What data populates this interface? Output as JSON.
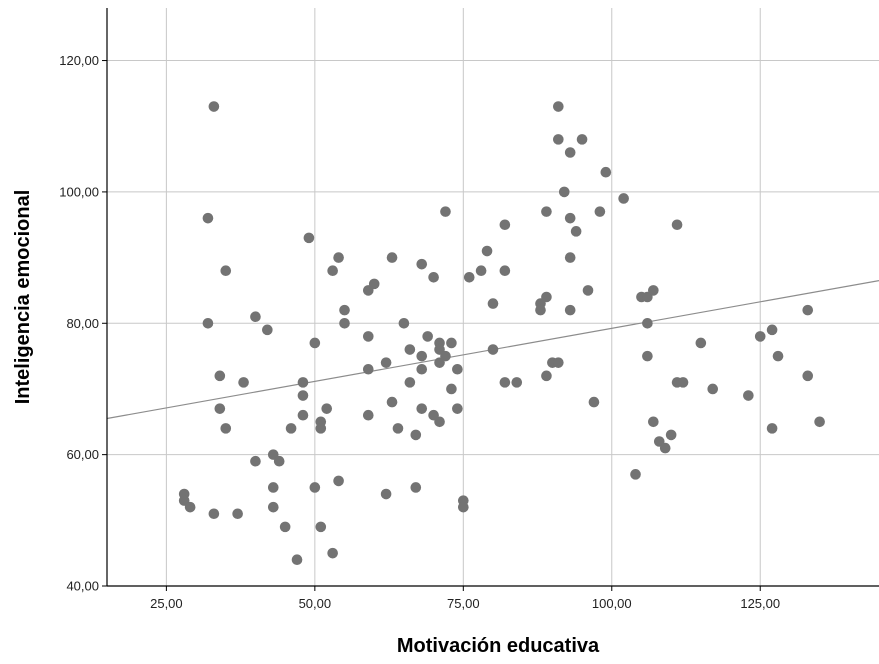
{
  "chart_data": {
    "type": "scatter",
    "title": "",
    "xlabel": "Motivación educativa",
    "ylabel": "Inteligencia emocional",
    "xlim": [
      15,
      145
    ],
    "ylim": [
      40,
      128
    ],
    "xticks": [
      25,
      50,
      75,
      100,
      125
    ],
    "yticks": [
      40,
      60,
      80,
      100,
      120
    ],
    "xtick_labels": [
      "25,00",
      "50,00",
      "75,00",
      "100,00",
      "125,00"
    ],
    "ytick_labels": [
      "40,00",
      "60,00",
      "80,00",
      "100,00",
      "120,00"
    ],
    "grid": true,
    "legend": "none",
    "colors": {
      "points": "#737373",
      "fit_line": "#8c8c8c",
      "grid": "#c8c8c8",
      "axis": "#000000"
    },
    "fit_line": {
      "x": [
        15,
        145
      ],
      "y": [
        65.5,
        86.5
      ]
    },
    "points": [
      [
        28,
        54
      ],
      [
        28,
        53
      ],
      [
        29,
        52
      ],
      [
        32,
        96
      ],
      [
        32,
        80
      ],
      [
        33,
        113
      ],
      [
        33,
        51
      ],
      [
        34,
        72
      ],
      [
        34,
        67
      ],
      [
        35,
        88
      ],
      [
        35,
        64
      ],
      [
        37,
        51
      ],
      [
        38,
        71
      ],
      [
        40,
        81
      ],
      [
        40,
        59
      ],
      [
        42,
        79
      ],
      [
        43,
        60
      ],
      [
        43,
        55
      ],
      [
        43,
        52
      ],
      [
        44,
        59
      ],
      [
        45,
        49
      ],
      [
        46,
        64
      ],
      [
        47,
        44
      ],
      [
        48,
        71
      ],
      [
        48,
        69
      ],
      [
        48,
        66
      ],
      [
        49,
        93
      ],
      [
        50,
        77
      ],
      [
        50,
        55
      ],
      [
        51,
        65
      ],
      [
        51,
        64
      ],
      [
        51,
        49
      ],
      [
        52,
        67
      ],
      [
        53,
        88
      ],
      [
        53,
        45
      ],
      [
        54,
        90
      ],
      [
        54,
        56
      ],
      [
        55,
        82
      ],
      [
        55,
        80
      ],
      [
        59,
        85
      ],
      [
        59,
        78
      ],
      [
        59,
        73
      ],
      [
        59,
        66
      ],
      [
        60,
        86
      ],
      [
        62,
        74
      ],
      [
        62,
        54
      ],
      [
        63,
        90
      ],
      [
        63,
        68
      ],
      [
        64,
        64
      ],
      [
        65,
        80
      ],
      [
        66,
        76
      ],
      [
        66,
        71
      ],
      [
        67,
        63
      ],
      [
        67,
        55
      ],
      [
        68,
        89
      ],
      [
        68,
        75
      ],
      [
        68,
        73
      ],
      [
        68,
        67
      ],
      [
        69,
        78
      ],
      [
        70,
        87
      ],
      [
        70,
        66
      ],
      [
        71,
        77
      ],
      [
        71,
        76
      ],
      [
        71,
        74
      ],
      [
        71,
        65
      ],
      [
        72,
        97
      ],
      [
        72,
        75
      ],
      [
        73,
        77
      ],
      [
        73,
        70
      ],
      [
        74,
        73
      ],
      [
        74,
        67
      ],
      [
        75,
        53
      ],
      [
        75,
        52
      ],
      [
        76,
        87
      ],
      [
        78,
        88
      ],
      [
        79,
        91
      ],
      [
        80,
        83
      ],
      [
        80,
        76
      ],
      [
        82,
        95
      ],
      [
        82,
        88
      ],
      [
        82,
        71
      ],
      [
        84,
        71
      ],
      [
        88,
        83
      ],
      [
        88,
        82
      ],
      [
        89,
        97
      ],
      [
        89,
        84
      ],
      [
        89,
        72
      ],
      [
        90,
        74
      ],
      [
        91,
        113
      ],
      [
        91,
        108
      ],
      [
        91,
        74
      ],
      [
        92,
        100
      ],
      [
        93,
        106
      ],
      [
        93,
        96
      ],
      [
        93,
        90
      ],
      [
        93,
        82
      ],
      [
        94,
        94
      ],
      [
        95,
        108
      ],
      [
        96,
        85
      ],
      [
        97,
        68
      ],
      [
        98,
        97
      ],
      [
        99,
        103
      ],
      [
        102,
        99
      ],
      [
        104,
        57
      ],
      [
        105,
        84
      ],
      [
        106,
        84
      ],
      [
        106,
        80
      ],
      [
        106,
        75
      ],
      [
        107,
        85
      ],
      [
        107,
        65
      ],
      [
        108,
        62
      ],
      [
        109,
        61
      ],
      [
        110,
        63
      ],
      [
        111,
        95
      ],
      [
        111,
        71
      ],
      [
        112,
        71
      ],
      [
        115,
        77
      ],
      [
        117,
        70
      ],
      [
        123,
        69
      ],
      [
        125,
        78
      ],
      [
        127,
        79
      ],
      [
        127,
        64
      ],
      [
        128,
        75
      ],
      [
        133,
        82
      ],
      [
        133,
        72
      ],
      [
        135,
        65
      ]
    ]
  }
}
